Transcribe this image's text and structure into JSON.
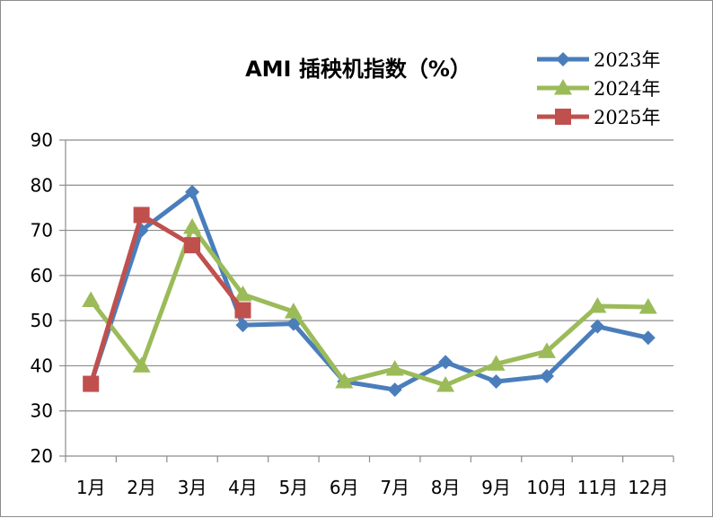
{
  "chart_data": {
    "type": "line",
    "title": "AMI 插秧机指数（%）",
    "xlabel": "",
    "ylabel": "",
    "ylim": [
      20,
      90
    ],
    "yticks": [
      "20",
      "30",
      "40",
      "50",
      "60",
      "70",
      "80",
      "90"
    ],
    "categories": [
      "1月",
      "2月",
      "3月",
      "4月",
      "5月",
      "6月",
      "7月",
      "8月",
      "9月",
      "10月",
      "11月",
      "12月"
    ],
    "grid": "horizontal",
    "legend_position": "top-right",
    "series": [
      {
        "name": "2023年",
        "color": "#4a7ebb",
        "marker": "diamond",
        "values": [
          36,
          70,
          78.5,
          49,
          49.3,
          36.5,
          34.7,
          40.8,
          36.5,
          37.7,
          48.7,
          46.2
        ]
      },
      {
        "name": "2024年",
        "color": "#9bbb59",
        "marker": "triangle",
        "values": [
          54.5,
          40,
          70.7,
          55.8,
          52,
          36.5,
          39.3,
          35.7,
          40.4,
          43.2,
          53.2,
          53
        ]
      },
      {
        "name": "2025年",
        "color": "#c0504d",
        "marker": "square",
        "values": [
          36,
          73.4,
          66.7,
          52.3,
          null,
          null,
          null,
          null,
          null,
          null,
          null,
          null
        ]
      }
    ]
  }
}
